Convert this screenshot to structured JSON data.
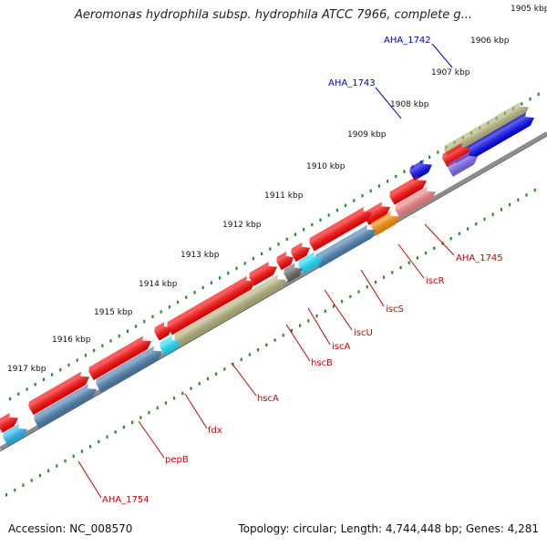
{
  "title": "Aeromonas hydrophila subsp. hydrophila ATCC 7966, complete g...",
  "footer": {
    "accession": "Accession: NC_008570",
    "topology": "Topology: circular; Length: 4,744,448 bp; Genes: 4,281"
  },
  "colors": {
    "backbone": "#8c8c8c",
    "tick": "#2e8b2e",
    "red": "#ff0000",
    "khaki": "#b5b27a",
    "blue": "#0000ee",
    "steelblue": "#4a7fb0",
    "cyan": "#18e0ff",
    "orange": "#ff8c00",
    "salmon": "#f08080",
    "purple": "#7b68ee",
    "gray": "#666666",
    "lightblue": "#22b8f0"
  },
  "kbp_labels": [
    "1905 kbp",
    "1906 kbp",
    "1907 kbp",
    "1908 kbp",
    "1909 kbp",
    "1910 kbp",
    "1911 kbp",
    "1912 kbp",
    "1913 kbp",
    "1914 kbp",
    "1915 kbp",
    "1916 kbp",
    "1917 kbp"
  ],
  "gene_labels_red": [
    "AHA_1745",
    "iscR",
    "iscS",
    "iscU",
    "iscA",
    "hscB",
    "hscA",
    "fdx",
    "pepB",
    "AHA_1754"
  ],
  "gene_labels_blue": [
    "AHA_1742",
    "AHA_1743"
  ],
  "icons": [
    "feature-arrow-icon"
  ]
}
